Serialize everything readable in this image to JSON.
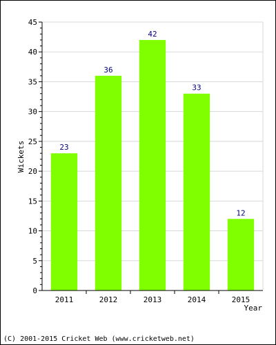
{
  "chart_data": {
    "type": "bar",
    "categories": [
      "2011",
      "2012",
      "2013",
      "2014",
      "2015"
    ],
    "values": [
      23,
      36,
      42,
      33,
      12
    ],
    "data_labels": [
      "23",
      "36",
      "42",
      "33",
      "12"
    ],
    "xlabel": "Year",
    "ylabel": "Wickets",
    "ylim": [
      0,
      45
    ],
    "yticks": [
      0,
      5,
      10,
      15,
      20,
      25,
      30,
      35,
      40,
      45
    ],
    "ytick_labels": [
      "0",
      "5",
      "10",
      "15",
      "20",
      "25",
      "30",
      "35",
      "40",
      "45"
    ],
    "grid": true,
    "bar_color": "#80ff00",
    "data_label_color": "#000080",
    "grid_color": "#d8d8d8"
  },
  "footer": {
    "copyright": "(C) 2001-2015 Cricket Web (www.cricketweb.net)"
  }
}
